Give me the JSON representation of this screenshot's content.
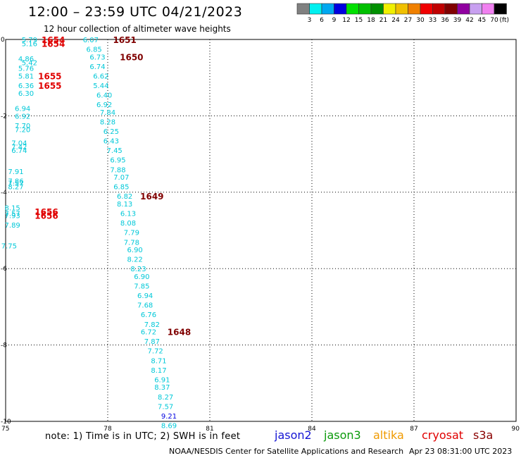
{
  "header": {
    "title": "12:00 – 23:59 UTC 04/21/2023",
    "subtitle": "12 hour collection of altimeter wave heights"
  },
  "footer": {
    "note": "note:  1) Time is in UTC; 2) SWH is in feet",
    "credit": "NOAA/NESDIS Center for Satellite Applications and Research",
    "credit_date": "Apr 23 08:31:00 UTC 2023",
    "satellites": [
      {
        "name": "jason2",
        "color": "#1414d4"
      },
      {
        "name": "jason3",
        "color": "#0a9a0a"
      },
      {
        "name": "altika",
        "color": "#f09a00"
      },
      {
        "name": "cryosat",
        "color": "#e00000"
      },
      {
        "name": "s3a",
        "color": "#8a0000"
      }
    ]
  },
  "chart_data": {
    "type": "scatter",
    "title": "12:00 – 23:59 UTC 04/21/2023",
    "subtitle": "12 hour collection of altimeter wave heights",
    "xlim": [
      75,
      90
    ],
    "ylim": [
      -10,
      0
    ],
    "x_ticks": [
      "75",
      "78",
      "81",
      "84",
      "87",
      "90"
    ],
    "y_ticks": [
      "0",
      "-2",
      "-4",
      "-6",
      "-8",
      "-10"
    ],
    "grid": true,
    "colorbar": {
      "unit": "(ft)",
      "labels": [
        "3",
        "6",
        "9",
        "12",
        "15",
        "18",
        "21",
        "24",
        "27",
        "30",
        "33",
        "36",
        "39",
        "42",
        "45",
        "70"
      ],
      "colors": [
        "#808080",
        "#00f0f0",
        "#00a8f0",
        "#0000e0",
        "#00e000",
        "#00c000",
        "#009000",
        "#f0f000",
        "#f0c000",
        "#f08000",
        "#f00000",
        "#c00000",
        "#800000",
        "#9000a0",
        "#c8a0f0",
        "#f080f0",
        "#000000"
      ]
    },
    "points": [
      {
        "x": 75.7,
        "y": 0.0,
        "v": "5.79",
        "c": "#00c8d8"
      },
      {
        "x": 75.7,
        "y": -0.1,
        "v": "5.16",
        "c": "#00c8d8"
      },
      {
        "x": 75.6,
        "y": -0.5,
        "v": "4.86",
        "c": "#00c8d8"
      },
      {
        "x": 75.7,
        "y": -0.6,
        "v": "5.42",
        "c": "#00c8d8"
      },
      {
        "x": 75.6,
        "y": -0.75,
        "v": "5.76",
        "c": "#00c8d8"
      },
      {
        "x": 75.6,
        "y": -0.95,
        "v": "5.81",
        "c": "#00c8d8"
      },
      {
        "x": 75.6,
        "y": -1.2,
        "v": "6.36",
        "c": "#00c8d8"
      },
      {
        "x": 75.6,
        "y": -1.4,
        "v": "6.30",
        "c": "#00c8d8"
      },
      {
        "x": 75.5,
        "y": -1.8,
        "v": "6.94",
        "c": "#00c8d8"
      },
      {
        "x": 75.5,
        "y": -2.0,
        "v": "6.92",
        "c": "#00c8d8"
      },
      {
        "x": 75.5,
        "y": -2.25,
        "v": "7.70",
        "c": "#00c8d8"
      },
      {
        "x": 75.5,
        "y": -2.35,
        "v": "7.20",
        "c": "#00c8d8"
      },
      {
        "x": 75.4,
        "y": -2.7,
        "v": "7.04",
        "c": "#00c8d8"
      },
      {
        "x": 75.4,
        "y": -2.8,
        "v": "7.42",
        "c": "#00c8d8"
      },
      {
        "x": 75.4,
        "y": -2.9,
        "v": "6.74",
        "c": "#00c8d8"
      },
      {
        "x": 75.3,
        "y": -3.45,
        "v": "7.91",
        "c": "#00c8d8"
      },
      {
        "x": 75.3,
        "y": -3.7,
        "v": "7.86",
        "c": "#00c8d8"
      },
      {
        "x": 75.3,
        "y": -3.75,
        "v": "7.57",
        "c": "#00c8d8"
      },
      {
        "x": 75.3,
        "y": -3.85,
        "v": "8.27",
        "c": "#00c8d8"
      },
      {
        "x": 75.2,
        "y": -4.4,
        "v": "8.15",
        "c": "#00c8d8"
      },
      {
        "x": 75.2,
        "y": -4.55,
        "v": "7.57",
        "c": "#00c8d8"
      },
      {
        "x": 75.2,
        "y": -4.6,
        "v": "7.93",
        "c": "#00c8d8"
      },
      {
        "x": 75.2,
        "y": -4.85,
        "v": "7.89",
        "c": "#00c8d8"
      },
      {
        "x": 75.1,
        "y": -5.4,
        "v": "7.75",
        "c": "#00c8d8"
      },
      {
        "x": 77.5,
        "y": 0.0,
        "v": "6.07",
        "c": "#00c8d8"
      },
      {
        "x": 77.6,
        "y": -0.25,
        "v": "6.85",
        "c": "#00c8d8"
      },
      {
        "x": 77.7,
        "y": -0.45,
        "v": "6.73",
        "c": "#00c8d8"
      },
      {
        "x": 77.7,
        "y": -0.7,
        "v": "6.74",
        "c": "#00c8d8"
      },
      {
        "x": 77.8,
        "y": -0.95,
        "v": "6.62",
        "c": "#00c8d8"
      },
      {
        "x": 77.8,
        "y": -1.2,
        "v": "5.44",
        "c": "#00c8d8"
      },
      {
        "x": 77.9,
        "y": -1.45,
        "v": "6.40",
        "c": "#00c8d8"
      },
      {
        "x": 77.9,
        "y": -1.7,
        "v": "6.92",
        "c": "#00c8d8"
      },
      {
        "x": 78.0,
        "y": -1.9,
        "v": "7.84",
        "c": "#00c8d8"
      },
      {
        "x": 78.0,
        "y": -2.15,
        "v": "8.28",
        "c": "#00c8d8"
      },
      {
        "x": 78.1,
        "y": -2.4,
        "v": "6.25",
        "c": "#00c8d8"
      },
      {
        "x": 78.1,
        "y": -2.65,
        "v": "6.43",
        "c": "#00c8d8"
      },
      {
        "x": 78.2,
        "y": -2.9,
        "v": "7.45",
        "c": "#00c8d8"
      },
      {
        "x": 78.3,
        "y": -3.15,
        "v": "6.95",
        "c": "#00c8d8"
      },
      {
        "x": 78.3,
        "y": -3.4,
        "v": "7.88",
        "c": "#00c8d8"
      },
      {
        "x": 78.4,
        "y": -3.6,
        "v": "7.07",
        "c": "#00c8d8"
      },
      {
        "x": 78.4,
        "y": -3.85,
        "v": "6.85",
        "c": "#00c8d8"
      },
      {
        "x": 78.5,
        "y": -4.1,
        "v": "6.82",
        "c": "#00c8d8"
      },
      {
        "x": 78.5,
        "y": -4.3,
        "v": "8.13",
        "c": "#00c8d8"
      },
      {
        "x": 78.6,
        "y": -4.55,
        "v": "6.13",
        "c": "#00c8d8"
      },
      {
        "x": 78.6,
        "y": -4.8,
        "v": "8.08",
        "c": "#00c8d8"
      },
      {
        "x": 78.7,
        "y": -5.05,
        "v": "7.79",
        "c": "#00c8d8"
      },
      {
        "x": 78.7,
        "y": -5.3,
        "v": "7.78",
        "c": "#00c8d8"
      },
      {
        "x": 78.8,
        "y": -5.5,
        "v": "6.90",
        "c": "#00c8d8"
      },
      {
        "x": 78.8,
        "y": -5.75,
        "v": "8.22",
        "c": "#00c8d8"
      },
      {
        "x": 78.9,
        "y": -6.0,
        "v": "8.23",
        "c": "#00c8d8"
      },
      {
        "x": 79.0,
        "y": -6.2,
        "v": "6.90",
        "c": "#00c8d8"
      },
      {
        "x": 79.0,
        "y": -6.45,
        "v": "7.85",
        "c": "#00c8d8"
      },
      {
        "x": 79.1,
        "y": -6.7,
        "v": "6.94",
        "c": "#00c8d8"
      },
      {
        "x": 79.1,
        "y": -6.95,
        "v": "7.68",
        "c": "#00c8d8"
      },
      {
        "x": 79.2,
        "y": -7.2,
        "v": "6.76",
        "c": "#00c8d8"
      },
      {
        "x": 79.3,
        "y": -7.45,
        "v": "7.82",
        "c": "#00c8d8"
      },
      {
        "x": 79.2,
        "y": -7.65,
        "v": "6.72",
        "c": "#00c8d8"
      },
      {
        "x": 79.3,
        "y": -7.9,
        "v": "7.87",
        "c": "#00c8d8"
      },
      {
        "x": 79.4,
        "y": -8.15,
        "v": "7.72",
        "c": "#00c8d8"
      },
      {
        "x": 79.5,
        "y": -8.4,
        "v": "8.71",
        "c": "#00c8d8"
      },
      {
        "x": 79.5,
        "y": -8.65,
        "v": "8.17",
        "c": "#00c8d8"
      },
      {
        "x": 79.6,
        "y": -8.9,
        "v": "6.91",
        "c": "#00c8d8"
      },
      {
        "x": 79.6,
        "y": -9.1,
        "v": "8.37",
        "c": "#00c8d8"
      },
      {
        "x": 79.7,
        "y": -9.35,
        "v": "8.27",
        "c": "#00c8d8"
      },
      {
        "x": 79.7,
        "y": -9.6,
        "v": "7.57",
        "c": "#00c8d8"
      },
      {
        "x": 79.8,
        "y": -9.85,
        "v": "9.21",
        "c": "#0000e0"
      },
      {
        "x": 79.8,
        "y": -10.1,
        "v": "8.69",
        "c": "#00c8d8"
      }
    ],
    "time_labels": [
      {
        "x": 76.4,
        "y": 0.0,
        "v": "1654",
        "c": "#e00000"
      },
      {
        "x": 76.4,
        "y": -0.1,
        "v": "1654",
        "c": "#e00000"
      },
      {
        "x": 76.3,
        "y": -0.95,
        "v": "1655",
        "c": "#e00000"
      },
      {
        "x": 76.3,
        "y": -1.2,
        "v": "1655",
        "c": "#e00000"
      },
      {
        "x": 76.2,
        "y": -4.5,
        "v": "1656",
        "c": "#e00000"
      },
      {
        "x": 76.2,
        "y": -4.6,
        "v": "1656",
        "c": "#e00000"
      },
      {
        "x": 78.5,
        "y": 0.0,
        "v": "1651",
        "c": "#800000"
      },
      {
        "x": 78.7,
        "y": -0.45,
        "v": "1650",
        "c": "#800000"
      },
      {
        "x": 79.3,
        "y": -4.1,
        "v": "1649",
        "c": "#800000"
      },
      {
        "x": 80.1,
        "y": -7.65,
        "v": "1648",
        "c": "#800000"
      }
    ]
  }
}
